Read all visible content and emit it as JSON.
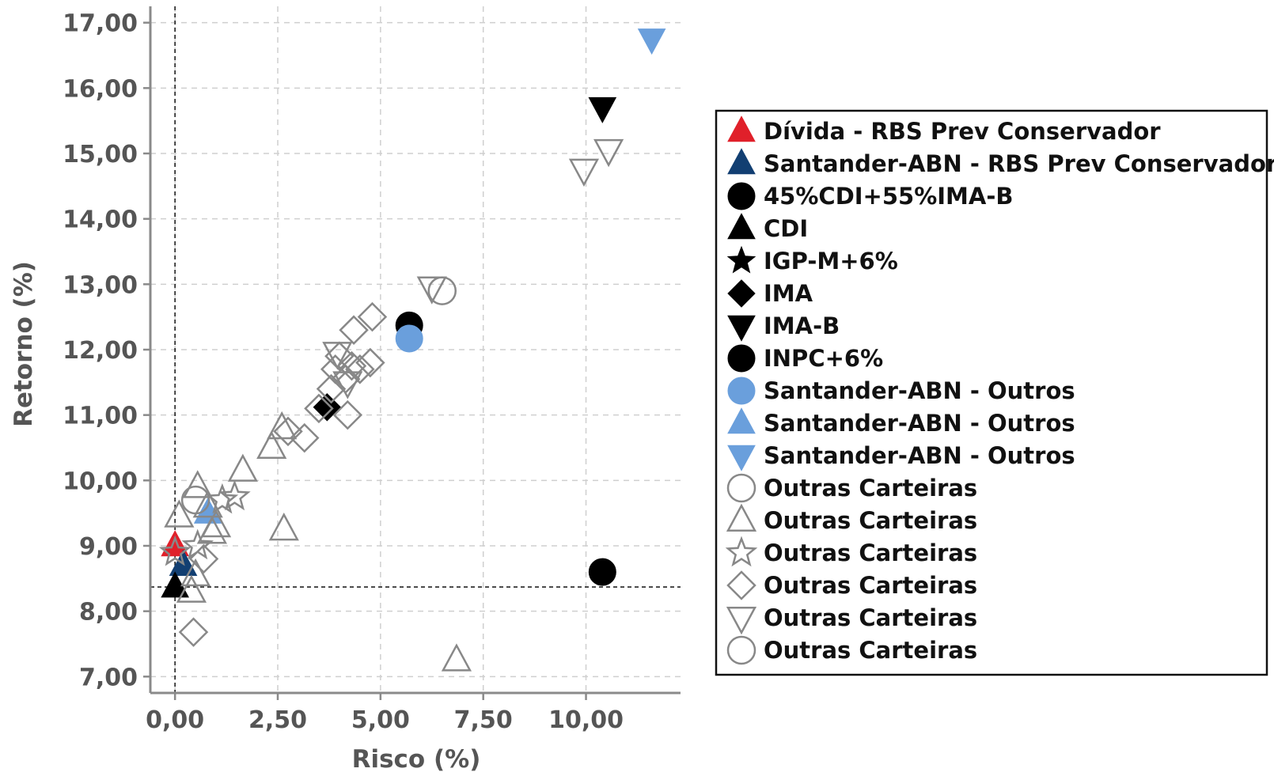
{
  "chart_data": {
    "type": "scatter",
    "xlabel": "Risco (%)",
    "ylabel": "Retorno (%)",
    "xlim": [
      -0.6,
      12.3
    ],
    "ylim": [
      6.75,
      17.25
    ],
    "x_ticks": [
      0,
      2.5,
      5,
      7.5,
      10
    ],
    "x_tick_labels": [
      "0,00",
      "2,50",
      "5,00",
      "7,50",
      "10,00"
    ],
    "y_ticks": [
      7,
      8,
      9,
      10,
      11,
      12,
      13,
      14,
      15,
      16,
      17
    ],
    "y_tick_labels": [
      "7,00",
      "8,00",
      "9,00",
      "10,00",
      "11,00",
      "12,00",
      "13,00",
      "14,00",
      "15,00",
      "16,00",
      "17,00"
    ],
    "grid": true,
    "reference_lines": {
      "x": 0,
      "y": 8.37
    },
    "legend_position": "right",
    "series": [
      {
        "name": "Dívida - RBS Prev Conservador",
        "marker": "triangle-up",
        "color": "#e0202a",
        "filled": true,
        "points": [
          [
            0.0,
            9.0
          ]
        ]
      },
      {
        "name": "Santander-ABN - RBS Prev Conservador",
        "marker": "triangle-up",
        "color": "#123f72",
        "filled": true,
        "points": [
          [
            0.2,
            8.7
          ]
        ]
      },
      {
        "name": "45%CDI+55%IMA-B",
        "marker": "circle",
        "color": "#000000",
        "filled": true,
        "points": [
          [
            5.7,
            12.37
          ]
        ]
      },
      {
        "name": "CDI",
        "marker": "triangle-up",
        "color": "#000000",
        "filled": true,
        "points": [
          [
            0.0,
            8.37
          ]
        ]
      },
      {
        "name": "IGP-M+6%",
        "marker": "star",
        "color": "#000000",
        "filled": true,
        "points": []
      },
      {
        "name": "IMA",
        "marker": "diamond",
        "color": "#000000",
        "filled": true,
        "points": [
          [
            3.7,
            11.12
          ]
        ]
      },
      {
        "name": "IMA-B",
        "marker": "triangle-down",
        "color": "#000000",
        "filled": true,
        "points": [
          [
            10.4,
            15.7
          ]
        ]
      },
      {
        "name": "INPC+6%",
        "marker": "circle",
        "color": "#000000",
        "filled": true,
        "points": [
          [
            10.4,
            8.6
          ]
        ]
      },
      {
        "name": "Santander-ABN - Outros",
        "marker": "circle",
        "color": "#6a9fdc",
        "filled": true,
        "points": [
          [
            5.7,
            12.17
          ]
        ]
      },
      {
        "name": "Santander-ABN - Outros",
        "marker": "triangle-up",
        "color": "#6a9fdc",
        "filled": true,
        "points": [
          [
            0.8,
            9.5
          ]
        ]
      },
      {
        "name": "Santander-ABN - Outros",
        "marker": "triangle-down",
        "color": "#6a9fdc",
        "filled": true,
        "points": [
          [
            11.6,
            16.75
          ]
        ]
      },
      {
        "name": "Outras Carteiras",
        "marker": "circle",
        "color": "#888888",
        "filled": false,
        "points": [
          [
            0.5,
            9.7
          ],
          [
            6.5,
            12.9
          ]
        ]
      },
      {
        "name": "Outras Carteiras",
        "marker": "triangle-up",
        "color": "#888888",
        "filled": false,
        "points": [
          [
            0.1,
            9.45
          ],
          [
            0.55,
            9.9
          ],
          [
            0.8,
            9.6
          ],
          [
            1.0,
            9.3
          ],
          [
            1.65,
            10.15
          ],
          [
            2.35,
            10.5
          ],
          [
            2.6,
            10.8
          ],
          [
            2.65,
            9.25
          ],
          [
            6.85,
            7.25
          ],
          [
            0.4,
            8.3
          ],
          [
            0.5,
            8.55
          ],
          [
            0.9,
            9.2
          ]
        ]
      },
      {
        "name": "Outras Carteiras",
        "marker": "star",
        "color": "#888888",
        "filled": false,
        "points": [
          [
            0.0,
            8.9
          ],
          [
            1.15,
            9.7
          ],
          [
            1.45,
            9.75
          ],
          [
            0.55,
            9.0
          ]
        ]
      },
      {
        "name": "Outras Carteiras",
        "marker": "diamond",
        "color": "#888888",
        "filled": false,
        "points": [
          [
            0.45,
            7.68
          ],
          [
            3.15,
            10.65
          ],
          [
            2.75,
            10.75
          ],
          [
            3.5,
            11.1
          ],
          [
            3.8,
            11.4
          ],
          [
            3.9,
            11.7
          ],
          [
            4.0,
            11.9
          ],
          [
            4.15,
            11.55
          ],
          [
            4.2,
            11.0
          ],
          [
            4.3,
            11.75
          ],
          [
            4.35,
            12.3
          ],
          [
            4.5,
            11.7
          ],
          [
            4.75,
            11.8
          ],
          [
            4.8,
            12.5
          ],
          [
            0.7,
            8.8
          ]
        ]
      },
      {
        "name": "Outras Carteiras",
        "marker": "triangle-down",
        "color": "#888888",
        "filled": false,
        "points": [
          [
            9.95,
            14.75
          ],
          [
            10.55,
            15.05
          ],
          [
            6.25,
            12.95
          ],
          [
            3.95,
            11.95
          ],
          [
            4.2,
            11.5
          ]
        ]
      },
      {
        "name": "Outras Carteiras",
        "marker": "circle",
        "color": "#888888",
        "filled": false,
        "points": []
      }
    ]
  }
}
